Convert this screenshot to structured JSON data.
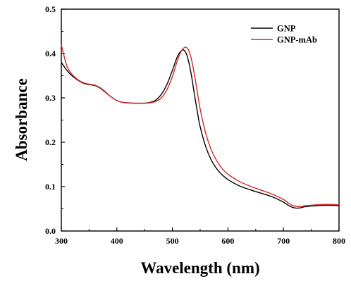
{
  "chart_data": {
    "type": "line",
    "title": "",
    "xlabel": "Wavelength (nm)",
    "ylabel": "Absorbance",
    "xlim": [
      300,
      800
    ],
    "ylim": [
      0.0,
      0.5
    ],
    "xticks": [
      "300",
      "400",
      "500",
      "600",
      "700",
      "800"
    ],
    "yticks": [
      "0.0",
      "0.1",
      "0.2",
      "0.3",
      "0.4",
      "0.5"
    ],
    "grid": false,
    "legend_position": "top-right",
    "series": [
      {
        "name": "GNP",
        "color": "#000000",
        "x": [
          300,
          310,
          320,
          330,
          340,
          350,
          360,
          370,
          380,
          390,
          400,
          410,
          420,
          430,
          440,
          450,
          460,
          470,
          480,
          490,
          500,
          505,
          510,
          515,
          520,
          525,
          530,
          535,
          540,
          545,
          550,
          560,
          570,
          580,
          590,
          600,
          620,
          640,
          660,
          680,
          700,
          710,
          720,
          730,
          740,
          760,
          780,
          800
        ],
        "y": [
          0.38,
          0.362,
          0.349,
          0.34,
          0.333,
          0.33,
          0.328,
          0.322,
          0.312,
          0.302,
          0.294,
          0.29,
          0.289,
          0.288,
          0.288,
          0.288,
          0.29,
          0.295,
          0.308,
          0.33,
          0.362,
          0.38,
          0.396,
          0.405,
          0.408,
          0.4,
          0.378,
          0.345,
          0.305,
          0.268,
          0.235,
          0.19,
          0.16,
          0.14,
          0.126,
          0.116,
          0.102,
          0.093,
          0.085,
          0.077,
          0.065,
          0.057,
          0.052,
          0.052,
          0.055,
          0.057,
          0.058,
          0.057
        ]
      },
      {
        "name": "GNP-mAb",
        "color": "#d62728",
        "x": [
          300,
          310,
          320,
          330,
          340,
          350,
          360,
          370,
          380,
          390,
          400,
          410,
          420,
          430,
          440,
          450,
          460,
          470,
          480,
          490,
          500,
          505,
          510,
          515,
          520,
          525,
          530,
          535,
          540,
          545,
          550,
          560,
          570,
          580,
          590,
          600,
          620,
          640,
          660,
          680,
          700,
          710,
          720,
          730,
          740,
          760,
          780,
          800
        ],
        "y": [
          0.42,
          0.372,
          0.352,
          0.341,
          0.334,
          0.331,
          0.329,
          0.323,
          0.313,
          0.302,
          0.294,
          0.29,
          0.289,
          0.288,
          0.288,
          0.288,
          0.289,
          0.292,
          0.3,
          0.318,
          0.348,
          0.368,
          0.388,
          0.403,
          0.412,
          0.414,
          0.405,
          0.383,
          0.35,
          0.312,
          0.275,
          0.22,
          0.183,
          0.158,
          0.14,
          0.128,
          0.112,
          0.101,
          0.092,
          0.083,
          0.071,
          0.062,
          0.056,
          0.055,
          0.057,
          0.059,
          0.06,
          0.059
        ]
      }
    ]
  }
}
